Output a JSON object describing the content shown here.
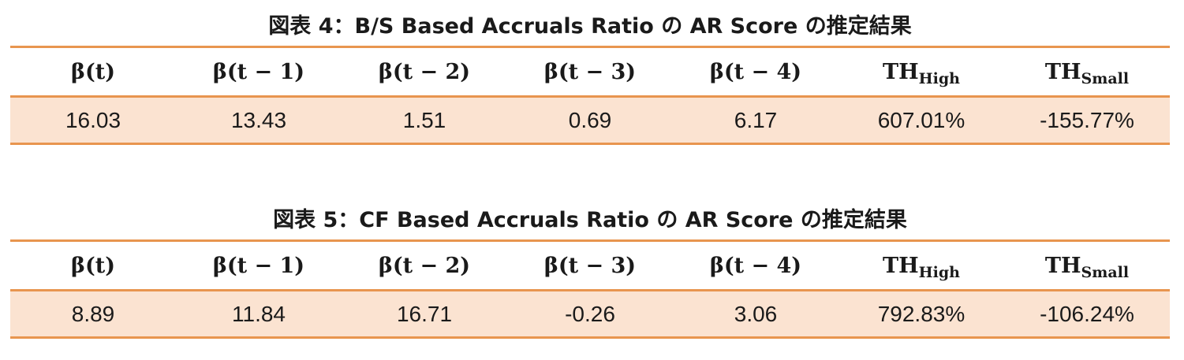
{
  "tables": [
    {
      "title": "図表 4：B/S Based Accruals Ratio の AR Score の推定結果",
      "headers": [
        {
          "main": "β(t)",
          "sub": ""
        },
        {
          "main": "β(t − 1)",
          "sub": ""
        },
        {
          "main": "β(t − 2)",
          "sub": ""
        },
        {
          "main": "β(t − 3)",
          "sub": ""
        },
        {
          "main": "β(t − 4)",
          "sub": ""
        },
        {
          "main": "TH",
          "sub": "High"
        },
        {
          "main": "TH",
          "sub": "Small"
        }
      ],
      "values": [
        "16.03",
        "13.43",
        "1.51",
        "0.69",
        "6.17",
        "607.01%",
        "-155.77%"
      ]
    },
    {
      "title": "図表 5：CF Based Accruals Ratio の AR Score の推定結果",
      "headers": [
        {
          "main": "β(t)",
          "sub": ""
        },
        {
          "main": "β(t − 1)",
          "sub": ""
        },
        {
          "main": "β(t − 2)",
          "sub": ""
        },
        {
          "main": "β(t − 3)",
          "sub": ""
        },
        {
          "main": "β(t − 4)",
          "sub": ""
        },
        {
          "main": "TH",
          "sub": "High"
        },
        {
          "main": "TH",
          "sub": "Small"
        }
      ],
      "values": [
        "8.89",
        "11.84",
        "16.71",
        "-0.26",
        "3.06",
        "792.83%",
        "-106.24%"
      ]
    }
  ],
  "colors": {
    "rule": "#e8954f",
    "row_fill": "#fbe3d1",
    "text": "#1a1a1a"
  }
}
